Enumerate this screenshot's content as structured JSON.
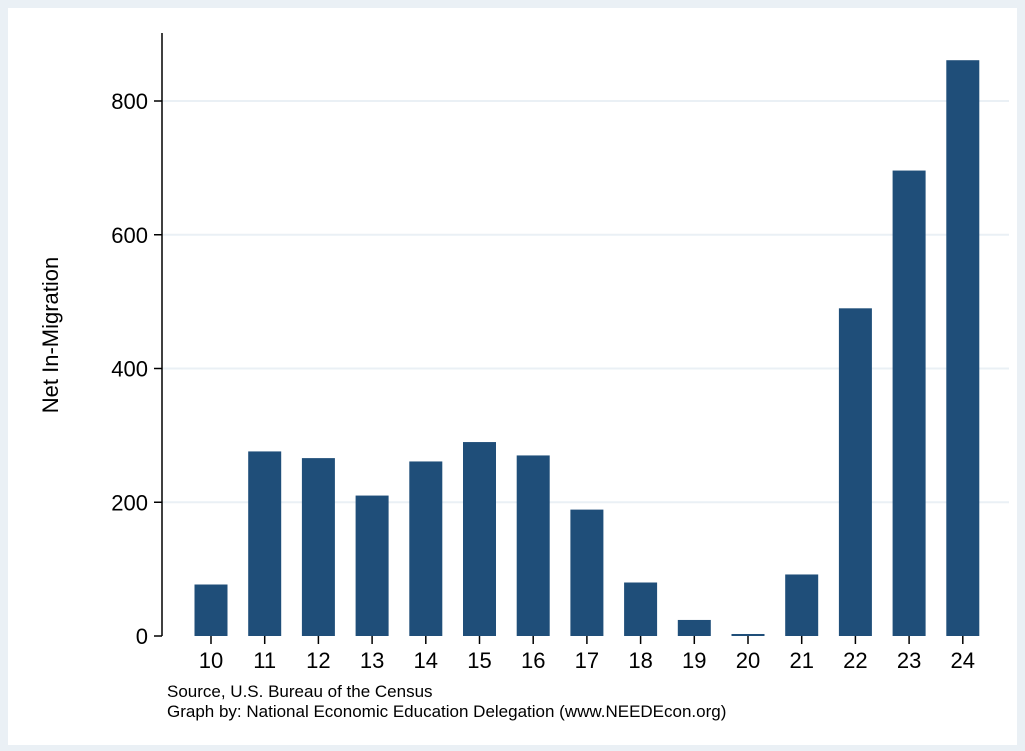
{
  "colors": {
    "bar": "#1f4e79",
    "background": "#eaf0f5",
    "plot": "#ffffff",
    "grid": "#eaf0f5",
    "axis": "#000000"
  },
  "notes": {
    "source": "Source, U.S. Bureau of the Census",
    "credit": "Graph by: National Economic Education Delegation (www.NEEDEcon.org)"
  },
  "chart_data": {
    "type": "bar",
    "title": "",
    "xlabel": "",
    "ylabel": "Net In-Migration",
    "categories": [
      "10",
      "11",
      "12",
      "13",
      "14",
      "15",
      "16",
      "17",
      "18",
      "19",
      "20",
      "21",
      "22",
      "23",
      "24"
    ],
    "values": [
      77,
      276,
      266,
      210,
      261,
      290,
      270,
      189,
      80,
      24,
      3,
      92,
      490,
      696,
      861
    ],
    "ylim": [
      0,
      900
    ],
    "yticks": [
      0,
      200,
      400,
      600,
      800
    ],
    "grid": true,
    "legend": "none"
  }
}
